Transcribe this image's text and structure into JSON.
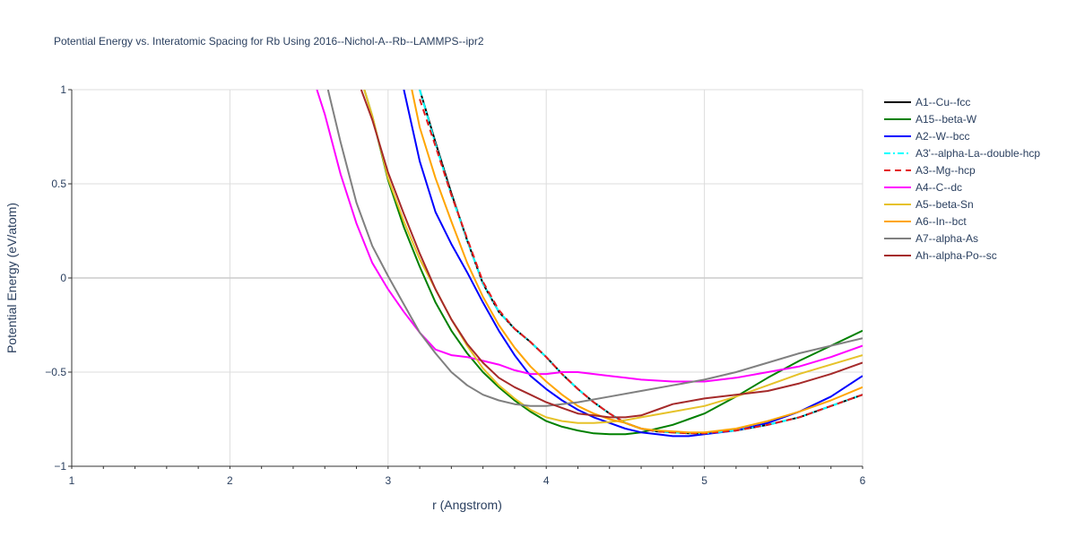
{
  "chart_data": {
    "type": "line",
    "title": "Potential Energy vs. Interatomic Spacing for Rb Using 2016--Nichol-A--Rb--LAMMPS--ipr2",
    "xlabel": "r (Angstrom)",
    "ylabel": "Potential Energy (eV/atom)",
    "xlim": [
      1,
      6
    ],
    "ylim": [
      -1,
      1
    ],
    "x_ticks": [
      "1",
      "2",
      "3",
      "4",
      "5",
      "6"
    ],
    "y_ticks": [
      "−1",
      "−0.5",
      "0",
      "0.5",
      "1"
    ],
    "grid": true,
    "legend_position": "right",
    "series": [
      {
        "name": "A1--Cu--fcc",
        "color": "#000000",
        "dash": "solid",
        "x": [
          3.2,
          3.3,
          3.4,
          3.5,
          3.6,
          3.7,
          3.8,
          3.9,
          4.0,
          4.1,
          4.2,
          4.3,
          4.4,
          4.5,
          4.6,
          4.7,
          4.8,
          4.9,
          5.0,
          5.2,
          5.4,
          5.6,
          5.8,
          6.0
        ],
        "y": [
          1.0,
          0.72,
          0.45,
          0.2,
          -0.03,
          -0.18,
          -0.27,
          -0.34,
          -0.42,
          -0.51,
          -0.59,
          -0.66,
          -0.72,
          -0.77,
          -0.8,
          -0.815,
          -0.82,
          -0.825,
          -0.825,
          -0.81,
          -0.78,
          -0.74,
          -0.68,
          -0.62
        ]
      },
      {
        "name": "A15--beta-W",
        "color": "#008000",
        "dash": "solid",
        "x": [
          2.85,
          2.9,
          3.0,
          3.1,
          3.2,
          3.3,
          3.4,
          3.5,
          3.6,
          3.7,
          3.8,
          3.9,
          4.0,
          4.1,
          4.2,
          4.3,
          4.4,
          4.5,
          4.6,
          4.7,
          4.8,
          4.9,
          5.0,
          5.2,
          5.4,
          5.6,
          5.8,
          6.0
        ],
        "y": [
          1.0,
          0.86,
          0.52,
          0.27,
          0.06,
          -0.13,
          -0.28,
          -0.4,
          -0.5,
          -0.58,
          -0.65,
          -0.71,
          -0.76,
          -0.79,
          -0.81,
          -0.825,
          -0.83,
          -0.83,
          -0.82,
          -0.8,
          -0.78,
          -0.75,
          -0.72,
          -0.63,
          -0.53,
          -0.44,
          -0.36,
          -0.28
        ]
      },
      {
        "name": "A2--W--bcc",
        "color": "#0000ff",
        "dash": "solid",
        "x": [
          3.1,
          3.2,
          3.3,
          3.4,
          3.5,
          3.6,
          3.7,
          3.8,
          3.9,
          4.0,
          4.1,
          4.2,
          4.3,
          4.4,
          4.5,
          4.6,
          4.7,
          4.8,
          4.9,
          5.0,
          5.2,
          5.4,
          5.6,
          5.8,
          6.0
        ],
        "y": [
          1.0,
          0.62,
          0.35,
          0.18,
          0.03,
          -0.13,
          -0.28,
          -0.41,
          -0.52,
          -0.59,
          -0.65,
          -0.7,
          -0.74,
          -0.77,
          -0.8,
          -0.82,
          -0.83,
          -0.84,
          -0.84,
          -0.83,
          -0.81,
          -0.77,
          -0.71,
          -0.63,
          -0.52
        ]
      },
      {
        "name": "A3'--alpha-La--double-hcp",
        "color": "#00ffff",
        "dash": "dashdot",
        "x": [
          3.2,
          3.3,
          3.4,
          3.5,
          3.6,
          3.7,
          3.8,
          3.9,
          4.0,
          4.1,
          4.2,
          4.3,
          4.4,
          4.5,
          4.6,
          4.7,
          4.8,
          4.9,
          5.0,
          5.2,
          5.4,
          5.6,
          5.8,
          6.0
        ],
        "y": [
          1.0,
          0.71,
          0.44,
          0.2,
          -0.03,
          -0.18,
          -0.27,
          -0.34,
          -0.42,
          -0.51,
          -0.59,
          -0.66,
          -0.72,
          -0.77,
          -0.8,
          -0.815,
          -0.82,
          -0.825,
          -0.825,
          -0.81,
          -0.78,
          -0.74,
          -0.68,
          -0.62
        ]
      },
      {
        "name": "A3--Mg--hcp",
        "color": "#e41a1c",
        "dash": "dash",
        "x": [
          3.2,
          3.3,
          3.4,
          3.5,
          3.6,
          3.7,
          3.8,
          3.9,
          4.0,
          4.1,
          4.2,
          4.3,
          4.4,
          4.5,
          4.6,
          4.7,
          4.8,
          4.9,
          5.0,
          5.2,
          5.4,
          5.6,
          5.8,
          6.0
        ],
        "y": [
          0.95,
          0.7,
          0.44,
          0.21,
          -0.02,
          -0.17,
          -0.27,
          -0.34,
          -0.42,
          -0.51,
          -0.59,
          -0.66,
          -0.72,
          -0.77,
          -0.8,
          -0.815,
          -0.82,
          -0.825,
          -0.825,
          -0.81,
          -0.78,
          -0.74,
          -0.68,
          -0.62
        ]
      },
      {
        "name": "A4--C--dc",
        "color": "#ff00ff",
        "dash": "solid",
        "x": [
          2.55,
          2.6,
          2.7,
          2.8,
          2.9,
          3.0,
          3.1,
          3.2,
          3.3,
          3.4,
          3.5,
          3.6,
          3.7,
          3.8,
          3.9,
          4.0,
          4.1,
          4.2,
          4.3,
          4.4,
          4.5,
          4.6,
          4.8,
          5.0,
          5.2,
          5.4,
          5.6,
          5.8,
          6.0
        ],
        "y": [
          1.0,
          0.87,
          0.55,
          0.29,
          0.08,
          -0.06,
          -0.18,
          -0.29,
          -0.38,
          -0.41,
          -0.42,
          -0.44,
          -0.46,
          -0.49,
          -0.51,
          -0.51,
          -0.5,
          -0.5,
          -0.51,
          -0.52,
          -0.53,
          -0.54,
          -0.55,
          -0.55,
          -0.53,
          -0.5,
          -0.47,
          -0.42,
          -0.36
        ]
      },
      {
        "name": "A5--beta-Sn",
        "color": "#e6c229",
        "dash": "solid",
        "x": [
          2.85,
          2.9,
          3.0,
          3.1,
          3.2,
          3.3,
          3.4,
          3.5,
          3.6,
          3.7,
          3.8,
          3.9,
          4.0,
          4.1,
          4.2,
          4.3,
          4.4,
          4.5,
          4.6,
          4.8,
          5.0,
          5.2,
          5.4,
          5.6,
          5.8,
          6.0
        ],
        "y": [
          1.0,
          0.86,
          0.53,
          0.3,
          0.1,
          -0.06,
          -0.22,
          -0.36,
          -0.48,
          -0.57,
          -0.64,
          -0.7,
          -0.74,
          -0.76,
          -0.77,
          -0.77,
          -0.765,
          -0.755,
          -0.74,
          -0.71,
          -0.68,
          -0.63,
          -0.57,
          -0.51,
          -0.46,
          -0.41
        ]
      },
      {
        "name": "A6--In--bct",
        "color": "#ffa500",
        "dash": "solid",
        "x": [
          3.15,
          3.2,
          3.3,
          3.4,
          3.5,
          3.6,
          3.7,
          3.8,
          3.9,
          4.0,
          4.1,
          4.2,
          4.3,
          4.4,
          4.5,
          4.6,
          4.7,
          4.8,
          4.9,
          5.0,
          5.2,
          5.4,
          5.6,
          5.8,
          6.0
        ],
        "y": [
          1.0,
          0.8,
          0.53,
          0.3,
          0.08,
          -0.1,
          -0.25,
          -0.37,
          -0.47,
          -0.55,
          -0.62,
          -0.68,
          -0.72,
          -0.75,
          -0.77,
          -0.8,
          -0.81,
          -0.815,
          -0.82,
          -0.82,
          -0.8,
          -0.76,
          -0.71,
          -0.65,
          -0.58
        ]
      },
      {
        "name": "A7--alpha-As",
        "color": "#808080",
        "dash": "solid",
        "x": [
          2.62,
          2.7,
          2.8,
          2.9,
          3.0,
          3.1,
          3.2,
          3.3,
          3.4,
          3.5,
          3.6,
          3.7,
          3.8,
          3.9,
          4.0,
          4.2,
          4.4,
          4.6,
          4.8,
          5.0,
          5.2,
          5.4,
          5.6,
          5.8,
          6.0
        ],
        "y": [
          1.0,
          0.72,
          0.4,
          0.17,
          0.01,
          -0.14,
          -0.29,
          -0.4,
          -0.5,
          -0.57,
          -0.62,
          -0.65,
          -0.67,
          -0.68,
          -0.68,
          -0.66,
          -0.63,
          -0.6,
          -0.57,
          -0.54,
          -0.5,
          -0.45,
          -0.4,
          -0.36,
          -0.32
        ]
      },
      {
        "name": "Ah--alpha-Po--sc",
        "color": "#a52a2a",
        "dash": "solid",
        "x": [
          2.83,
          2.9,
          3.0,
          3.1,
          3.2,
          3.3,
          3.4,
          3.5,
          3.6,
          3.7,
          3.8,
          3.9,
          4.0,
          4.1,
          4.2,
          4.3,
          4.4,
          4.5,
          4.6,
          4.7,
          4.8,
          5.0,
          5.2,
          5.4,
          5.6,
          5.8,
          6.0
        ],
        "y": [
          1.0,
          0.84,
          0.56,
          0.34,
          0.13,
          -0.06,
          -0.22,
          -0.35,
          -0.45,
          -0.53,
          -0.58,
          -0.62,
          -0.66,
          -0.69,
          -0.72,
          -0.73,
          -0.74,
          -0.74,
          -0.73,
          -0.7,
          -0.67,
          -0.64,
          -0.62,
          -0.6,
          -0.56,
          -0.51,
          -0.45
        ]
      }
    ]
  }
}
